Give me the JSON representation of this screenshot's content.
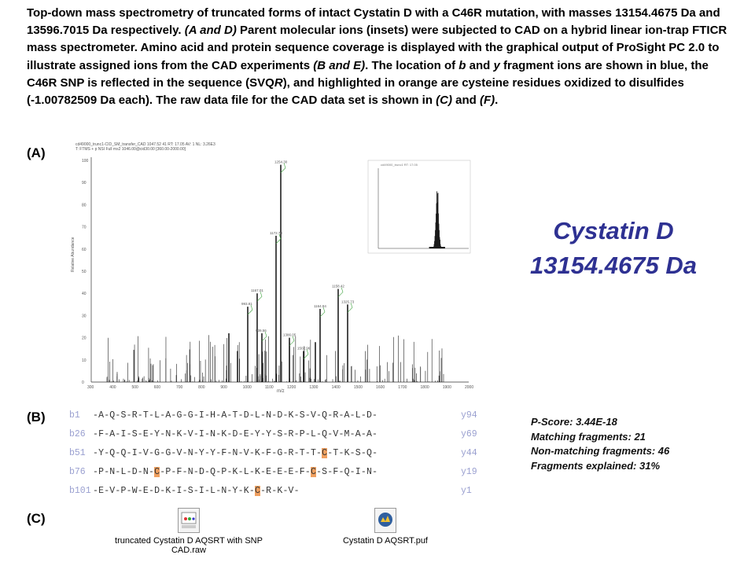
{
  "caption": {
    "part1": "Top-down mass spectrometry of truncated forms of intact Cystatin D with a C46R mutation, with masses 13154.4675 Da and 13596.7015 Da respectively. ",
    "italic1": "(A and D)",
    "part2": " Parent molecular ions (insets) were subjected to CAD on a hybrid linear ion-trap FTICR mass spectrometer. Amino acid and protein sequence coverage is displayed with the graphical output of ProSight PC 2.0 to illustrate assigned ions from the CAD experiments ",
    "italic2": "(B and E)",
    "part3": ". The location of ",
    "italic3": "b",
    "part4": " and ",
    "italic4": "y",
    "part5": " fragment ions are shown in blue, the C46R SNP is reflected in the sequence (SVQ",
    "italic5": "R",
    "part6": "), and highlighted in orange are cysteine residues oxidized to disulfides (-1.00782509 Da each). The raw data file for the CAD data set is shown in ",
    "italic6": "(C)",
    "part7": " and ",
    "italic7": "(F)",
    "part8": "."
  },
  "labels": {
    "a": "(A)",
    "b": "(B)",
    "c": "(C)"
  },
  "protein": {
    "name": "Cystatin D",
    "mass": "13154.4675 Da"
  },
  "stats": {
    "pscore": "P-Score: 3.44E-18",
    "matching": "Matching fragments: 21",
    "nonmatching": "Non-matching fragments: 46",
    "explained": "Fragments explained: 31%"
  },
  "sequence_rows": [
    {
      "left": "b1",
      "seq": "-A-Q-S-R-T-L-A-G-G-I-H-A-T-D-L-N-D-K-S-V-Q-R-A-L-D-",
      "right": "y94"
    },
    {
      "left": "b26",
      "seq": "-F-A-I-S-E-Y-N-K-V-I-N-K-D-E-Y-Y-S-R-P-L-Q-V-M-A-A-",
      "right": "y69"
    },
    {
      "left": "b51",
      "seq": "-Y-Q-Q-I-V-G-G-V-N-Y-Y-F-N-V-K-F-G-R-T-T-C-T-K-S-Q-",
      "right": "y44"
    },
    {
      "left": "b76",
      "seq": "-P-N-L-D-N-C-P-F-N-D-Q-P-K-L-K-E-E-E-F-C-S-F-Q-I-N-",
      "right": "y19"
    },
    {
      "left": "b101",
      "seq": "-E-V-P-W-E-D-K-I-S-I-L-N-Y-K-C-R-K-V-",
      "right": "y1"
    }
  ],
  "files": [
    {
      "name": "truncated Cystatin D AQSRT with SNP CAD.raw"
    },
    {
      "name": "Cystatin D AQSRT.puf"
    }
  ],
  "spectrum": {
    "header_line1": "cd49000_trunc1-CID_SM_transfer_CAD 1047.52 41 RT: 17.05 AV: 1 NL: 3.26E3",
    "header_line2": "T: FTMS + p NSI Full ms2 1046.00@cid30.00 [360.00-2000.00]",
    "xlabel": "m/z",
    "ylabel": "Relative Abundance",
    "yticks": [
      "0",
      "10",
      "20",
      "30",
      "40",
      "50",
      "60",
      "70",
      "80",
      "90",
      "100"
    ],
    "xticks": [
      "300",
      "400",
      "500",
      "600",
      "700",
      "800",
      "900",
      "1000",
      "1100",
      "1200",
      "1300",
      "1400",
      "1500",
      "1600",
      "1700",
      "1800",
      "1900",
      "2000"
    ],
    "peak_labels": [
      "1254.30",
      "1172.70",
      "1167.01",
      "993.81",
      "939.56",
      "1164.94",
      "1158.42",
      "1325.73",
      "1386.05",
      "1502.96"
    ],
    "inset_header": "cd49000_trunc1 RT: 17.05"
  },
  "colors": {
    "title": "#2e3192",
    "highlight": "#f0a060",
    "fragment": "#3b4fc8"
  }
}
